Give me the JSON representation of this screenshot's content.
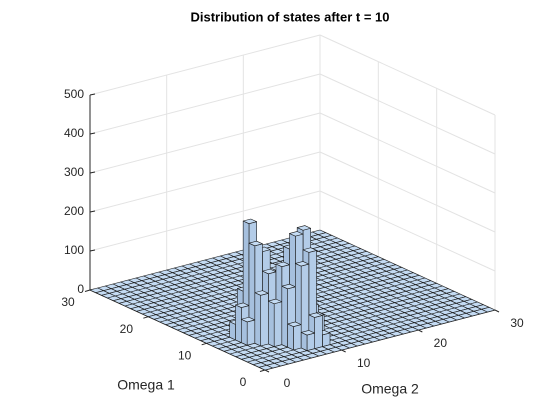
{
  "chart_data": {
    "type": "bar3",
    "title": "Distribution of states after t = 10",
    "xlabel": "Omega 1",
    "ylabel": "Omega 2",
    "xlim": [
      0,
      30
    ],
    "xticks": [
      0,
      10,
      20,
      30
    ],
    "ylim": [
      0,
      30
    ],
    "yticks": [
      0,
      10,
      20,
      30
    ],
    "zlim": [
      0,
      500
    ],
    "zticks": [
      0,
      100,
      200,
      300,
      400,
      500
    ],
    "grid": true,
    "color": "#c4dbf3",
    "values": [
      [
        0,
        0,
        0,
        0,
        0,
        0,
        0,
        0,
        0,
        0,
        0,
        0,
        0,
        0,
        0,
        0,
        0,
        0,
        0,
        0,
        0,
        0,
        0,
        0,
        0,
        0,
        0,
        0,
        0,
        0
      ],
      [
        0,
        0,
        0,
        0,
        0,
        0,
        0,
        0,
        0,
        0,
        0,
        0,
        0,
        0,
        0,
        0,
        0,
        0,
        0,
        0,
        0,
        0,
        0,
        0,
        0,
        0,
        0,
        0,
        0,
        0
      ],
      [
        0,
        0,
        0,
        0,
        0,
        0,
        0,
        40,
        80,
        30,
        0,
        0,
        0,
        0,
        0,
        0,
        0,
        0,
        0,
        0,
        0,
        0,
        0,
        0,
        0,
        0,
        0,
        0,
        0,
        0
      ],
      [
        0,
        0,
        0,
        0,
        0,
        0,
        60,
        210,
        240,
        70,
        0,
        0,
        0,
        0,
        0,
        0,
        0,
        0,
        0,
        0,
        0,
        0,
        0,
        0,
        0,
        0,
        0,
        0,
        0,
        0
      ],
      [
        0,
        0,
        0,
        0,
        0,
        0,
        150,
        280,
        290,
        90,
        0,
        0,
        0,
        0,
        0,
        0,
        0,
        0,
        0,
        0,
        0,
        0,
        0,
        0,
        0,
        0,
        0,
        0,
        0,
        0
      ],
      [
        0,
        0,
        0,
        0,
        0,
        110,
        200,
        240,
        140,
        0,
        0,
        0,
        0,
        0,
        0,
        0,
        0,
        0,
        0,
        0,
        0,
        0,
        0,
        0,
        0,
        0,
        0,
        0,
        0,
        0
      ],
      [
        0,
        0,
        0,
        0,
        130,
        180,
        160,
        120,
        0,
        0,
        0,
        0,
        0,
        0,
        0,
        0,
        0,
        0,
        0,
        0,
        0,
        0,
        0,
        0,
        0,
        0,
        0,
        0,
        0,
        0
      ],
      [
        0,
        0,
        0,
        60,
        250,
        230,
        150,
        40,
        0,
        0,
        0,
        0,
        0,
        0,
        0,
        0,
        0,
        0,
        0,
        0,
        0,
        0,
        0,
        0,
        0,
        0,
        0,
        0,
        0,
        0
      ],
      [
        0,
        0,
        0,
        90,
        300,
        210,
        70,
        0,
        0,
        0,
        0,
        0,
        0,
        0,
        0,
        0,
        0,
        0,
        0,
        0,
        0,
        0,
        0,
        0,
        0,
        0,
        0,
        0,
        0,
        0
      ],
      [
        0,
        0,
        0,
        40,
        120,
        60,
        0,
        0,
        0,
        0,
        0,
        0,
        0,
        0,
        0,
        0,
        0,
        0,
        0,
        0,
        0,
        0,
        0,
        0,
        0,
        0,
        0,
        0,
        0,
        0
      ],
      [
        0,
        0,
        0,
        0,
        0,
        0,
        0,
        0,
        0,
        0,
        0,
        0,
        0,
        0,
        0,
        0,
        0,
        0,
        0,
        0,
        0,
        0,
        0,
        0,
        0,
        0,
        0,
        0,
        0,
        0
      ],
      [
        0,
        0,
        0,
        0,
        0,
        0,
        0,
        0,
        0,
        0,
        0,
        0,
        0,
        0,
        0,
        0,
        0,
        0,
        0,
        0,
        0,
        0,
        0,
        0,
        0,
        0,
        0,
        0,
        0,
        0
      ],
      [
        0,
        0,
        0,
        0,
        0,
        0,
        0,
        0,
        0,
        0,
        0,
        0,
        0,
        0,
        0,
        0,
        0,
        0,
        0,
        0,
        0,
        0,
        0,
        0,
        0,
        0,
        0,
        0,
        0,
        0
      ],
      [
        0,
        0,
        0,
        0,
        0,
        0,
        0,
        0,
        0,
        0,
        0,
        0,
        0,
        0,
        0,
        0,
        0,
        0,
        0,
        0,
        0,
        0,
        0,
        0,
        0,
        0,
        0,
        0,
        0,
        0
      ],
      [
        0,
        0,
        0,
        0,
        0,
        0,
        0,
        0,
        0,
        0,
        0,
        0,
        0,
        0,
        0,
        0,
        0,
        0,
        0,
        0,
        0,
        0,
        0,
        0,
        0,
        0,
        0,
        0,
        0,
        0
      ],
      [
        0,
        0,
        0,
        0,
        0,
        0,
        0,
        0,
        0,
        0,
        0,
        0,
        0,
        0,
        0,
        0,
        0,
        0,
        0,
        0,
        0,
        0,
        0,
        0,
        0,
        0,
        0,
        0,
        0,
        0
      ],
      [
        0,
        0,
        0,
        0,
        0,
        0,
        0,
        0,
        0,
        0,
        0,
        0,
        0,
        0,
        0,
        0,
        0,
        0,
        0,
        0,
        0,
        0,
        0,
        0,
        0,
        0,
        0,
        0,
        0,
        0
      ],
      [
        0,
        0,
        0,
        0,
        0,
        0,
        0,
        0,
        0,
        0,
        0,
        0,
        0,
        0,
        0,
        0,
        0,
        0,
        0,
        0,
        0,
        0,
        0,
        0,
        0,
        0,
        0,
        0,
        0,
        0
      ],
      [
        0,
        0,
        0,
        0,
        0,
        0,
        0,
        0,
        0,
        0,
        0,
        0,
        0,
        0,
        0,
        0,
        0,
        0,
        0,
        0,
        0,
        0,
        0,
        0,
        0,
        0,
        0,
        0,
        0,
        0
      ],
      [
        0,
        0,
        0,
        0,
        0,
        0,
        0,
        0,
        0,
        0,
        0,
        0,
        0,
        0,
        0,
        0,
        0,
        0,
        0,
        0,
        0,
        0,
        0,
        0,
        0,
        0,
        0,
        0,
        0,
        0
      ],
      [
        0,
        0,
        0,
        0,
        0,
        0,
        0,
        0,
        0,
        0,
        0,
        0,
        0,
        0,
        0,
        0,
        0,
        0,
        0,
        0,
        0,
        0,
        0,
        0,
        0,
        0,
        0,
        0,
        0,
        0
      ],
      [
        0,
        0,
        0,
        0,
        0,
        0,
        0,
        0,
        0,
        0,
        0,
        0,
        0,
        0,
        0,
        0,
        0,
        0,
        0,
        0,
        0,
        0,
        0,
        0,
        0,
        0,
        0,
        0,
        0,
        0
      ],
      [
        0,
        0,
        0,
        0,
        0,
        0,
        0,
        0,
        0,
        0,
        0,
        0,
        0,
        0,
        0,
        0,
        0,
        0,
        0,
        0,
        0,
        0,
        0,
        0,
        0,
        0,
        0,
        0,
        0,
        0
      ],
      [
        0,
        0,
        0,
        0,
        0,
        0,
        0,
        0,
        0,
        0,
        0,
        0,
        0,
        0,
        0,
        0,
        0,
        0,
        0,
        0,
        0,
        0,
        0,
        0,
        0,
        0,
        0,
        0,
        0,
        0
      ],
      [
        0,
        0,
        0,
        0,
        0,
        0,
        0,
        0,
        0,
        0,
        0,
        0,
        0,
        0,
        0,
        0,
        0,
        0,
        0,
        0,
        0,
        0,
        0,
        0,
        0,
        0,
        0,
        0,
        0,
        0
      ],
      [
        0,
        0,
        0,
        0,
        0,
        0,
        0,
        0,
        0,
        0,
        0,
        0,
        0,
        0,
        0,
        0,
        0,
        0,
        0,
        0,
        0,
        0,
        0,
        0,
        0,
        0,
        0,
        0,
        0,
        0
      ],
      [
        0,
        0,
        0,
        0,
        0,
        0,
        0,
        0,
        0,
        0,
        0,
        0,
        0,
        0,
        0,
        0,
        0,
        0,
        0,
        0,
        0,
        0,
        0,
        0,
        0,
        0,
        0,
        0,
        0,
        0
      ],
      [
        0,
        0,
        0,
        0,
        0,
        0,
        0,
        0,
        0,
        0,
        0,
        0,
        0,
        0,
        0,
        0,
        0,
        0,
        0,
        0,
        0,
        0,
        0,
        0,
        0,
        0,
        0,
        0,
        0,
        0
      ],
      [
        0,
        0,
        0,
        0,
        0,
        0,
        0,
        0,
        0,
        0,
        0,
        0,
        0,
        0,
        0,
        0,
        0,
        0,
        0,
        0,
        0,
        0,
        0,
        0,
        0,
        0,
        0,
        0,
        0,
        0
      ],
      [
        0,
        0,
        0,
        0,
        0,
        0,
        0,
        0,
        0,
        0,
        0,
        0,
        0,
        0,
        0,
        0,
        0,
        0,
        0,
        0,
        0,
        0,
        0,
        0,
        0,
        0,
        0,
        0,
        0,
        0
      ]
    ]
  }
}
